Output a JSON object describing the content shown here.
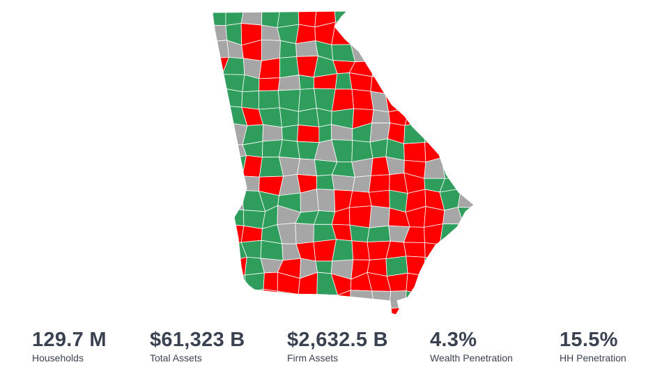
{
  "map": {
    "colors": {
      "green": "#2f9e5c",
      "red": "#ff0000",
      "gray": "#a6a6a6",
      "border": "#ffffff"
    }
  },
  "metrics": [
    {
      "value": "129.7 M",
      "label": "Households"
    },
    {
      "value": "$61,323 B",
      "label": "Total Assets"
    },
    {
      "value": "$2,632.5 B",
      "label": "Firm Assets"
    },
    {
      "value": "4.3%",
      "label": "Wealth Penetration"
    },
    {
      "value": "15.5%",
      "label": "HH Penetration"
    }
  ]
}
